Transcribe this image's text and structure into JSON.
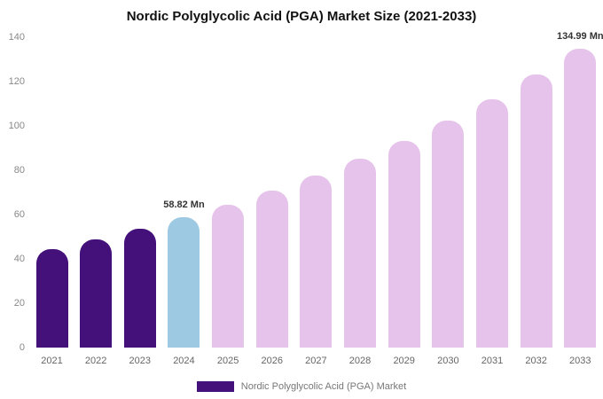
{
  "chart_data": {
    "type": "bar",
    "title": "Nordic Polyglycolic Acid (PGA) Market Size (2021-2033)",
    "categories": [
      "2021",
      "2022",
      "2023",
      "2024",
      "2025",
      "2026",
      "2027",
      "2028",
      "2029",
      "2030",
      "2031",
      "2032",
      "2033"
    ],
    "values": [
      44.6,
      48.9,
      53.6,
      58.82,
      64.5,
      70.7,
      77.6,
      85.1,
      93.3,
      102.3,
      112.2,
      123.1,
      134.99
    ],
    "unit": "Mn",
    "xlabel": "",
    "ylabel": "",
    "ylim": [
      0,
      140
    ],
    "yticks": [
      0,
      20,
      40,
      60,
      80,
      100,
      120,
      140
    ],
    "grid": false,
    "bar_colors": [
      "#44107A",
      "#44107A",
      "#44107A",
      "#9EC9E2",
      "#E6C3EA",
      "#E6C3EA",
      "#E6C3EA",
      "#E6C3EA",
      "#E6C3EA",
      "#E6C3EA",
      "#E6C3EA",
      "#E6C3EA",
      "#E6C3EA"
    ],
    "annotations": [
      {
        "category": "2024",
        "text": "58.82 Mn"
      },
      {
        "category": "2033",
        "text": "134.99 Mn"
      }
    ],
    "legend": {
      "position": "bottom",
      "swatch_color": "#44107A",
      "label": "Nordic Polyglycolic Acid (PGA) Market"
    }
  }
}
